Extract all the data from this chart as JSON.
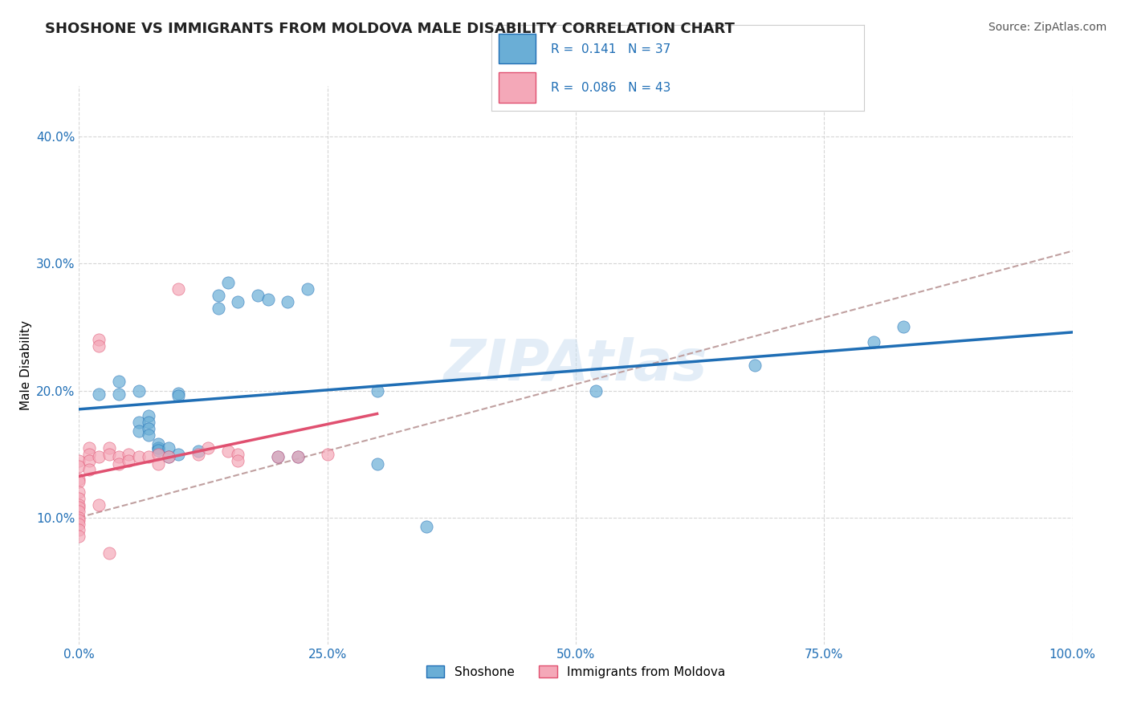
{
  "title": "SHOSHONE VS IMMIGRANTS FROM MOLDOVA MALE DISABILITY CORRELATION CHART",
  "source": "Source: ZipAtlas.com",
  "ylabel": "Male Disability",
  "xlabel": "",
  "legend_label1": "Shoshone",
  "legend_label2": "Immigrants from Moldova",
  "watermark": "ZIPAtlas",
  "R1": 0.141,
  "N1": 37,
  "R2": 0.086,
  "N2": 43,
  "xlim": [
    0,
    1.0
  ],
  "ylim": [
    0,
    0.44
  ],
  "xticks": [
    0.0,
    0.25,
    0.5,
    0.75,
    1.0
  ],
  "yticks": [
    0.1,
    0.2,
    0.3,
    0.4
  ],
  "color_blue": "#6aaed6",
  "color_pink": "#f4a8b8",
  "color_line_blue": "#1f6eb5",
  "color_line_pink": "#e05070",
  "color_dashed": "#c0a0a0",
  "shoshone_x": [
    0.02,
    0.04,
    0.04,
    0.06,
    0.06,
    0.06,
    0.07,
    0.07,
    0.07,
    0.07,
    0.08,
    0.08,
    0.08,
    0.08,
    0.09,
    0.09,
    0.1,
    0.1,
    0.1,
    0.12,
    0.14,
    0.14,
    0.15,
    0.16,
    0.18,
    0.19,
    0.2,
    0.21,
    0.22,
    0.23,
    0.3,
    0.3,
    0.35,
    0.52,
    0.68,
    0.8,
    0.83
  ],
  "shoshone_y": [
    0.197,
    0.197,
    0.207,
    0.2,
    0.175,
    0.168,
    0.18,
    0.175,
    0.17,
    0.165,
    0.155,
    0.155,
    0.158,
    0.153,
    0.155,
    0.148,
    0.198,
    0.196,
    0.15,
    0.152,
    0.275,
    0.265,
    0.285,
    0.27,
    0.275,
    0.272,
    0.148,
    0.27,
    0.148,
    0.28,
    0.2,
    0.142,
    0.093,
    0.2,
    0.22,
    0.238,
    0.25
  ],
  "moldova_x": [
    0.0,
    0.0,
    0.0,
    0.0,
    0.0,
    0.0,
    0.0,
    0.0,
    0.0,
    0.0,
    0.0,
    0.0,
    0.0,
    0.0,
    0.01,
    0.01,
    0.01,
    0.01,
    0.02,
    0.02,
    0.02,
    0.02,
    0.03,
    0.03,
    0.03,
    0.04,
    0.04,
    0.05,
    0.05,
    0.06,
    0.07,
    0.08,
    0.08,
    0.09,
    0.1,
    0.12,
    0.13,
    0.15,
    0.16,
    0.16,
    0.2,
    0.22,
    0.25
  ],
  "moldova_y": [
    0.145,
    0.14,
    0.13,
    0.128,
    0.12,
    0.115,
    0.11,
    0.108,
    0.105,
    0.1,
    0.098,
    0.095,
    0.09,
    0.085,
    0.155,
    0.15,
    0.145,
    0.138,
    0.24,
    0.235,
    0.148,
    0.11,
    0.155,
    0.15,
    0.072,
    0.148,
    0.142,
    0.15,
    0.145,
    0.148,
    0.148,
    0.15,
    0.142,
    0.148,
    0.28,
    0.15,
    0.155,
    0.152,
    0.15,
    0.145,
    0.148,
    0.148,
    0.15
  ],
  "title_fontsize": 13,
  "axis_label_fontsize": 11,
  "tick_fontsize": 11,
  "source_fontsize": 10
}
